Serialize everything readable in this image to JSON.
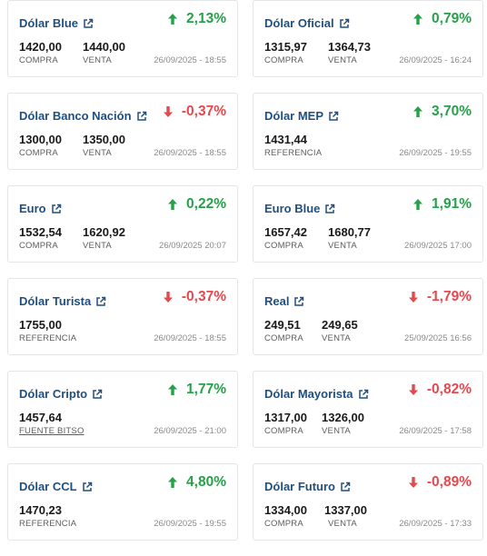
{
  "colors": {
    "title": "#1f4f80",
    "up": "#27a04a",
    "down": "#e5484d",
    "border": "#e3e5e8"
  },
  "cards": [
    {
      "name": "Dólar Blue",
      "change": "2,13%",
      "direction": "up",
      "values": [
        {
          "value": "1420,00",
          "label": "COMPRA"
        },
        {
          "value": "1440,00",
          "label": "VENTA"
        }
      ],
      "date": "26/09/2025 - 18:55"
    },
    {
      "name": "Dólar Oficial",
      "change": "0,79%",
      "direction": "up",
      "values": [
        {
          "value": "1315,97",
          "label": "COMPRA"
        },
        {
          "value": "1364,73",
          "label": "VENTA"
        }
      ],
      "date": "26/09/2025 - 16:24"
    },
    {
      "name": "Dólar Banco Nación",
      "change": "-0,37%",
      "direction": "down",
      "values": [
        {
          "value": "1300,00",
          "label": "COMPRA"
        },
        {
          "value": "1350,00",
          "label": "VENTA"
        }
      ],
      "date": "26/09/2025 - 18:55"
    },
    {
      "name": "Dólar MEP",
      "change": "3,70%",
      "direction": "up",
      "values": [
        {
          "value": "1431,44",
          "label": "REFERENCIA"
        }
      ],
      "date": "26/09/2025 - 19:55"
    },
    {
      "name": "Euro",
      "change": "0,22%",
      "direction": "up",
      "values": [
        {
          "value": "1532,54",
          "label": "COMPRA"
        },
        {
          "value": "1620,92",
          "label": "VENTA"
        }
      ],
      "date": "26/09/2025 20:07"
    },
    {
      "name": "Euro Blue",
      "change": "1,91%",
      "direction": "up",
      "values": [
        {
          "value": "1657,42",
          "label": "COMPRA"
        },
        {
          "value": "1680,77",
          "label": "VENTA"
        }
      ],
      "date": "26/09/2025 17:00"
    },
    {
      "name": "Dólar Turista",
      "change": "-0,37%",
      "direction": "down",
      "values": [
        {
          "value": "1755,00",
          "label": "REFERENCIA"
        }
      ],
      "date": "26/09/2025 - 18:55"
    },
    {
      "name": "Real",
      "change": "-1,79%",
      "direction": "down",
      "values": [
        {
          "value": "249,51",
          "label": "COMPRA"
        },
        {
          "value": "249,65",
          "label": "VENTA"
        }
      ],
      "date": "25/09/2025 16:56"
    },
    {
      "name": "Dólar Cripto",
      "change": "1,77%",
      "direction": "up",
      "values": [
        {
          "value": "1457,64",
          "label": "FUENTE BITSO",
          "link": true
        }
      ],
      "date": "26/09/2025 - 21:00"
    },
    {
      "name": "Dólar Mayorista",
      "change": "-0,82%",
      "direction": "down",
      "values": [
        {
          "value": "1317,00",
          "label": "COMPRA"
        },
        {
          "value": "1326,00",
          "label": "VENTA"
        }
      ],
      "date": "26/09/2025 - 17:58"
    },
    {
      "name": "Dólar CCL",
      "change": "4,80%",
      "direction": "up",
      "values": [
        {
          "value": "1470,23",
          "label": "REFERENCIA"
        }
      ],
      "date": "26/09/2025 - 19:55"
    },
    {
      "name": "Dólar Futuro",
      "change": "-0,89%",
      "direction": "down",
      "values": [
        {
          "value": "1334,00",
          "label": "COMPRA"
        },
        {
          "value": "1337,00",
          "label": "VENTA"
        }
      ],
      "date": "26/09/2025 - 17:33"
    }
  ]
}
